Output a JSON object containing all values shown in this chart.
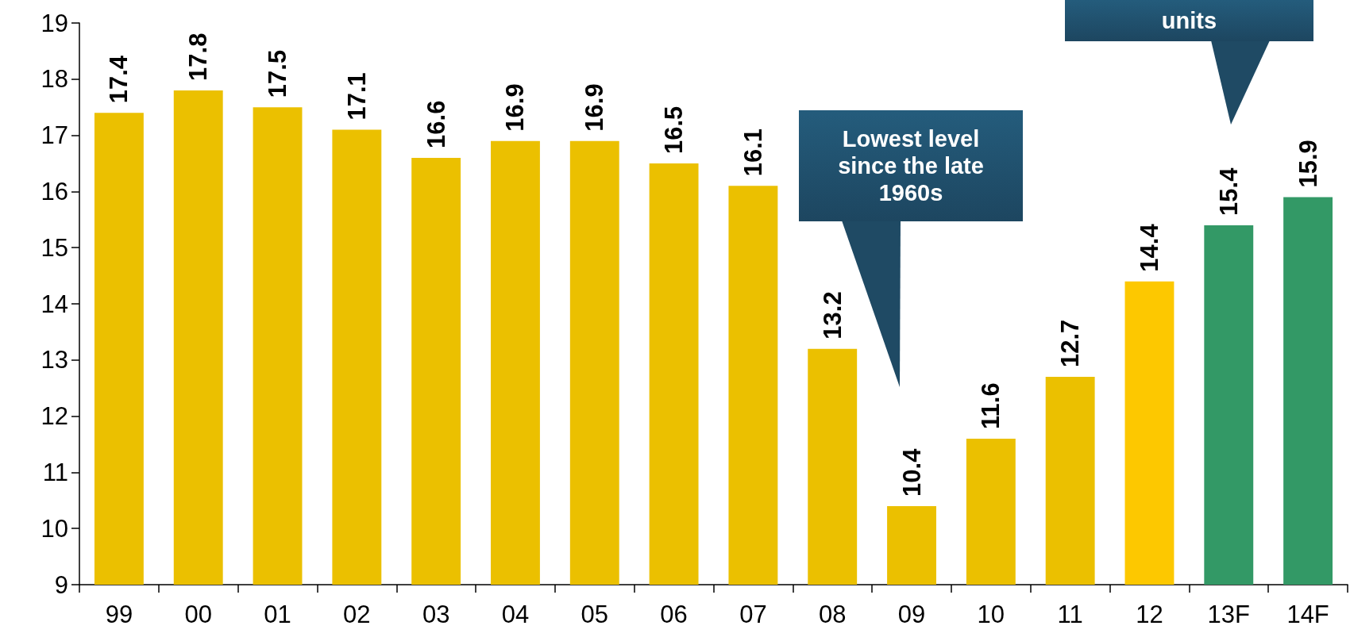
{
  "chart_data": {
    "type": "bar",
    "categories": [
      "99",
      "00",
      "01",
      "02",
      "03",
      "04",
      "05",
      "06",
      "07",
      "08",
      "09",
      "10",
      "11",
      "12",
      "13F",
      "14F"
    ],
    "values": [
      17.4,
      17.8,
      17.5,
      17.1,
      16.6,
      16.9,
      16.9,
      16.5,
      16.1,
      13.2,
      10.4,
      11.6,
      12.7,
      14.4,
      15.4,
      15.9
    ],
    "colors": [
      "#ebc000",
      "#ebc000",
      "#ebc000",
      "#ebc000",
      "#ebc000",
      "#ebc000",
      "#ebc000",
      "#ebc000",
      "#ebc000",
      "#ebc000",
      "#ebc000",
      "#ebc000",
      "#ebc000",
      "#fdc800",
      "#339966",
      "#339966"
    ],
    "ylim": [
      9,
      19
    ],
    "yticks": [
      9,
      10,
      11,
      12,
      13,
      14,
      15,
      16,
      17,
      18,
      19
    ],
    "grid": false,
    "data_labels": true,
    "annotations": [
      "Lowest level since the late 1960s",
      "units"
    ]
  }
}
